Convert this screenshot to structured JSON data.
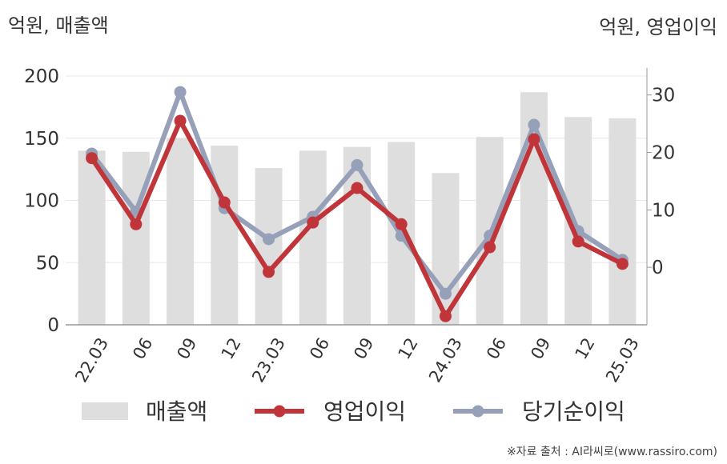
{
  "units": {
    "left": "억원, 매출액",
    "right": "억원, 영업이익"
  },
  "source": "※자료 출처 : AI라씨로(www.rassiro.com)",
  "colors": {
    "revenue": "#dedede",
    "operating_profit": "#c0353a",
    "net_income": "#96a0b8",
    "grid": "#e8e8e8",
    "axis": "#999999"
  },
  "chart_data": {
    "type": "bar",
    "categories": [
      "22.03",
      "06",
      "09",
      "12",
      "23.03",
      "06",
      "09",
      "12",
      "24.03",
      "06",
      "09",
      "12",
      "25.03"
    ],
    "left_axis": {
      "ylim": [
        0,
        200
      ],
      "ticks": [
        0,
        50,
        100,
        150,
        200
      ]
    },
    "right_axis": {
      "ylim": [
        -10,
        33.3
      ],
      "ticks": [
        0,
        10,
        20,
        30
      ]
    },
    "series": [
      {
        "name": "매출액",
        "kind": "bar",
        "axis": "left",
        "values": [
          140,
          139,
          150,
          144,
          126,
          140,
          143,
          147,
          122,
          151,
          187,
          167,
          166
        ]
      },
      {
        "name": "영업이익",
        "kind": "line",
        "axis": "right",
        "values": [
          19,
          7.5,
          25.5,
          11.3,
          -0.8,
          7.8,
          13.8,
          7.5,
          -8.5,
          3.5,
          22.3,
          4.5,
          0.6
        ]
      },
      {
        "name": "당기순이익",
        "kind": "line",
        "axis": "right",
        "values": [
          19.8,
          9.7,
          30.5,
          10.3,
          4.9,
          8.8,
          17.8,
          5.5,
          -4.6,
          5.5,
          24.8,
          6.3,
          1.3
        ]
      }
    ],
    "legend": "bottom",
    "grid": true
  }
}
